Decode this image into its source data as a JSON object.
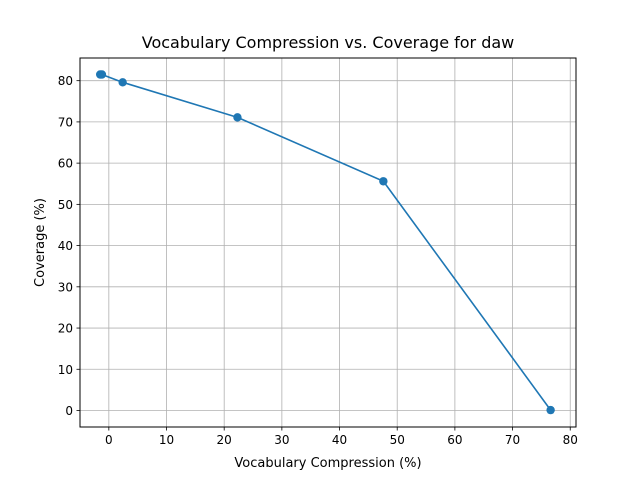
{
  "chart_data": {
    "type": "line",
    "title": "Vocabulary Compression vs. Coverage for daw",
    "xlabel": "Vocabulary Compression (%)",
    "ylabel": "Coverage (%)",
    "xlim": [
      -5,
      81
    ],
    "ylim": [
      -4,
      85.5
    ],
    "x_ticks": [
      0,
      10,
      20,
      30,
      40,
      50,
      60,
      70,
      80
    ],
    "y_ticks": [
      0,
      10,
      20,
      30,
      40,
      50,
      60,
      70,
      80
    ],
    "grid": true,
    "series": [
      {
        "color": "#1f77b4",
        "marker": "circle",
        "points": [
          {
            "x": -1.5,
            "y": 81.5
          },
          {
            "x": -1.2,
            "y": 81.5
          },
          {
            "x": 2.4,
            "y": 79.6
          },
          {
            "x": 22.3,
            "y": 71.1
          },
          {
            "x": 47.6,
            "y": 55.6
          },
          {
            "x": 76.6,
            "y": 0.1
          }
        ]
      }
    ]
  }
}
